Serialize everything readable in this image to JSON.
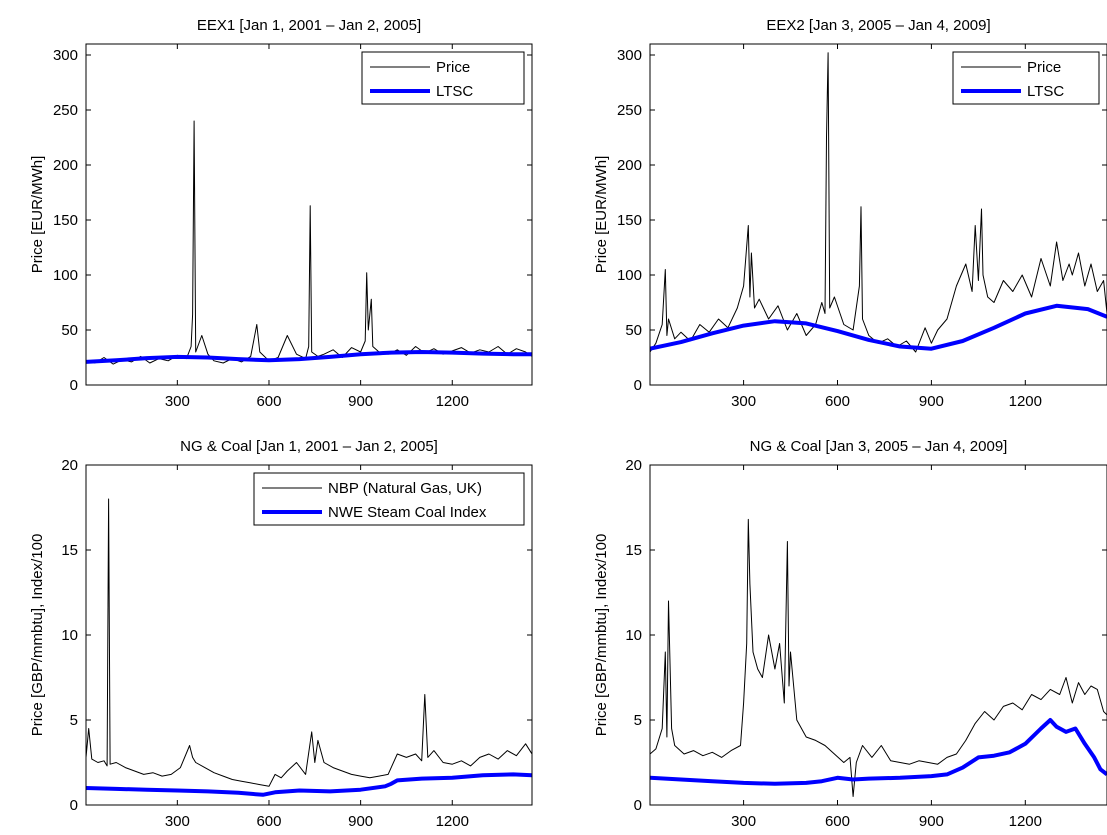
{
  "chart_data": [
    {
      "type": "line",
      "title": "EEX1 [Jan 1, 2001 – Jan 2, 2005]",
      "xlabel": "",
      "ylabel": "Price [EUR/MWh]",
      "xlim": [
        1,
        1461
      ],
      "ylim": [
        0,
        310
      ],
      "xticks": [
        300,
        600,
        900,
        1200
      ],
      "yticks": [
        0,
        50,
        100,
        150,
        200,
        250,
        300
      ],
      "grid": false,
      "legend_position": "top-right",
      "series": [
        {
          "name": "Price",
          "color": "#000000",
          "width": "thin",
          "x": [
            1,
            30,
            60,
            90,
            120,
            150,
            180,
            210,
            240,
            270,
            300,
            330,
            345,
            350,
            355,
            360,
            380,
            400,
            420,
            450,
            480,
            510,
            540,
            560,
            570,
            600,
            630,
            660,
            690,
            720,
            730,
            735,
            740,
            760,
            780,
            810,
            840,
            870,
            900,
            915,
            920,
            925,
            935,
            940,
            960,
            990,
            1020,
            1050,
            1080,
            1110,
            1140,
            1170,
            1200,
            1230,
            1260,
            1290,
            1320,
            1350,
            1380,
            1410,
            1440,
            1461
          ],
          "values": [
            22,
            20,
            25,
            19,
            23,
            21,
            26,
            20,
            24,
            22,
            27,
            24,
            35,
            64,
            240,
            30,
            45,
            28,
            22,
            20,
            24,
            21,
            26,
            55,
            30,
            22,
            25,
            45,
            28,
            24,
            35,
            163,
            30,
            26,
            28,
            32,
            25,
            34,
            30,
            40,
            102,
            50,
            78,
            35,
            30,
            28,
            32,
            27,
            35,
            29,
            33,
            28,
            31,
            34,
            29,
            32,
            30,
            35,
            28,
            33,
            30,
            26
          ]
        },
        {
          "name": "LTSC",
          "color": "#0000ff",
          "width": "thick",
          "x": [
            1,
            100,
            200,
            300,
            400,
            500,
            600,
            700,
            800,
            900,
            1000,
            1100,
            1200,
            1300,
            1400,
            1461
          ],
          "values": [
            21,
            22.5,
            24.5,
            25.5,
            25,
            23.5,
            22.5,
            23.5,
            25.5,
            28,
            29.5,
            30,
            29.5,
            28.5,
            28,
            28
          ]
        }
      ]
    },
    {
      "type": "line",
      "title": "EEX2 [Jan 3, 2005 – Jan 4, 2009]",
      "xlabel": "",
      "ylabel": "Price [EUR/MWh]",
      "xlim": [
        1,
        1461
      ],
      "ylim": [
        0,
        310
      ],
      "xticks": [
        300,
        600,
        900,
        1200
      ],
      "yticks": [
        0,
        50,
        100,
        150,
        200,
        250,
        300
      ],
      "grid": false,
      "legend_position": "top-right",
      "series": [
        {
          "name": "Price",
          "color": "#000000",
          "width": "thin",
          "x": [
            1,
            20,
            40,
            50,
            55,
            60,
            80,
            100,
            130,
            160,
            190,
            220,
            250,
            280,
            300,
            315,
            320,
            325,
            335,
            350,
            380,
            410,
            440,
            470,
            500,
            530,
            550,
            560,
            565,
            570,
            575,
            590,
            620,
            650,
            670,
            675,
            680,
            700,
            730,
            760,
            790,
            820,
            850,
            880,
            900,
            920,
            950,
            980,
            1010,
            1030,
            1040,
            1050,
            1060,
            1065,
            1080,
            1100,
            1130,
            1160,
            1190,
            1220,
            1250,
            1280,
            1300,
            1320,
            1340,
            1350,
            1370,
            1390,
            1410,
            1430,
            1450,
            1461
          ],
          "values": [
            30,
            38,
            55,
            105,
            45,
            60,
            42,
            48,
            40,
            55,
            48,
            60,
            52,
            70,
            90,
            145,
            80,
            120,
            70,
            78,
            60,
            72,
            50,
            65,
            45,
            55,
            75,
            65,
            225,
            302,
            70,
            80,
            55,
            50,
            90,
            162,
            60,
            45,
            38,
            42,
            35,
            40,
            30,
            52,
            38,
            50,
            60,
            90,
            110,
            85,
            145,
            95,
            160,
            100,
            80,
            75,
            95,
            85,
            100,
            80,
            115,
            90,
            130,
            95,
            110,
            100,
            120,
            90,
            110,
            85,
            95,
            65
          ]
        },
        {
          "name": "LTSC",
          "color": "#0000ff",
          "width": "thick",
          "x": [
            1,
            100,
            200,
            300,
            400,
            500,
            600,
            700,
            800,
            900,
            1000,
            1100,
            1200,
            1300,
            1400,
            1461
          ],
          "values": [
            33,
            39,
            47,
            54,
            58,
            56,
            49,
            41,
            35,
            33,
            40,
            52,
            65,
            72,
            69,
            62
          ]
        }
      ]
    },
    {
      "type": "line",
      "title": "NG & Coal [Jan 1, 2001 – Jan 2, 2005]",
      "xlabel": "",
      "ylabel": "Price [GBP/mmbtu], Index/100",
      "xlim": [
        1,
        1461
      ],
      "ylim": [
        0,
        20
      ],
      "xticks": [
        300,
        600,
        900,
        1200
      ],
      "yticks": [
        0,
        5,
        10,
        15,
        20
      ],
      "grid": false,
      "legend_position": "top-right",
      "series": [
        {
          "name": "NBP (Natural Gas, UK)",
          "color": "#000000",
          "width": "thin",
          "x": [
            1,
            10,
            20,
            40,
            60,
            70,
            75,
            80,
            100,
            130,
            160,
            190,
            220,
            250,
            280,
            310,
            340,
            350,
            360,
            390,
            420,
            450,
            480,
            510,
            540,
            570,
            600,
            620,
            640,
            660,
            690,
            720,
            740,
            750,
            760,
            780,
            810,
            840,
            870,
            900,
            930,
            960,
            990,
            1020,
            1050,
            1080,
            1100,
            1110,
            1120,
            1140,
            1170,
            1200,
            1230,
            1260,
            1290,
            1320,
            1350,
            1380,
            1410,
            1440,
            1461
          ],
          "values": [
            2.8,
            4.5,
            2.7,
            2.5,
            2.6,
            2.3,
            18.0,
            2.4,
            2.5,
            2.2,
            2.0,
            1.8,
            1.9,
            1.7,
            1.8,
            2.2,
            3.5,
            2.8,
            2.5,
            2.2,
            1.9,
            1.7,
            1.5,
            1.4,
            1.3,
            1.2,
            1.1,
            1.8,
            1.6,
            2.0,
            2.5,
            1.8,
            4.3,
            2.5,
            3.8,
            2.5,
            2.2,
            2.0,
            1.8,
            1.7,
            1.6,
            1.7,
            1.8,
            3.0,
            2.8,
            3.0,
            2.6,
            6.5,
            2.8,
            3.2,
            2.5,
            2.4,
            2.6,
            2.3,
            2.8,
            3.0,
            2.7,
            3.2,
            2.9,
            3.6,
            3.0
          ]
        },
        {
          "name": "NWE Steam Coal Index",
          "color": "#0000ff",
          "width": "thick",
          "x": [
            1,
            100,
            200,
            300,
            400,
            500,
            580,
            620,
            700,
            800,
            900,
            980,
            1000,
            1020,
            1100,
            1200,
            1300,
            1400,
            1461
          ],
          "values": [
            1.0,
            0.95,
            0.9,
            0.85,
            0.8,
            0.72,
            0.6,
            0.75,
            0.85,
            0.8,
            0.9,
            1.1,
            1.25,
            1.45,
            1.55,
            1.6,
            1.75,
            1.8,
            1.75
          ]
        }
      ]
    },
    {
      "type": "line",
      "title": "NG & Coal [Jan 3, 2005 – Jan 4, 2009]",
      "xlabel": "",
      "ylabel": "Price [GBP/mmbtu], Index/100",
      "xlim": [
        1,
        1461
      ],
      "ylim": [
        0,
        20
      ],
      "xticks": [
        300,
        600,
        900,
        1200
      ],
      "yticks": [
        0,
        5,
        10,
        15,
        20
      ],
      "grid": false,
      "legend_position": "none",
      "series": [
        {
          "name": "",
          "color": "#000000",
          "width": "thin",
          "x": [
            1,
            20,
            40,
            50,
            55,
            60,
            70,
            80,
            110,
            140,
            170,
            200,
            230,
            260,
            290,
            300,
            310,
            315,
            320,
            330,
            345,
            360,
            380,
            400,
            415,
            430,
            440,
            445,
            450,
            470,
            500,
            530,
            560,
            590,
            620,
            640,
            650,
            660,
            680,
            710,
            740,
            770,
            800,
            830,
            860,
            890,
            920,
            950,
            980,
            1010,
            1040,
            1070,
            1100,
            1130,
            1160,
            1190,
            1220,
            1250,
            1280,
            1310,
            1330,
            1350,
            1370,
            1390,
            1410,
            1430,
            1450,
            1461
          ],
          "values": [
            3.0,
            3.3,
            4.5,
            9.0,
            4.0,
            12.0,
            4.5,
            3.5,
            3.0,
            3.2,
            2.9,
            3.1,
            2.8,
            3.2,
            3.5,
            6.0,
            9.5,
            16.8,
            13.0,
            9.0,
            8.0,
            7.5,
            10.0,
            8.0,
            9.5,
            6.0,
            15.5,
            7.0,
            9.0,
            5.0,
            4.0,
            3.8,
            3.5,
            3.0,
            2.5,
            2.8,
            0.5,
            2.5,
            3.5,
            2.8,
            3.5,
            2.6,
            2.5,
            2.4,
            2.6,
            2.5,
            2.4,
            2.8,
            3.0,
            3.8,
            4.8,
            5.5,
            5.0,
            5.8,
            6.0,
            5.6,
            6.5,
            6.2,
            6.8,
            6.5,
            7.5,
            6.0,
            7.2,
            6.5,
            7.0,
            6.8,
            5.5,
            5.3
          ]
        },
        {
          "name": "",
          "color": "#0000ff",
          "width": "thick",
          "x": [
            1,
            100,
            200,
            300,
            400,
            500,
            550,
            600,
            650,
            700,
            800,
            900,
            950,
            1000,
            1050,
            1100,
            1150,
            1200,
            1250,
            1280,
            1300,
            1330,
            1360,
            1390,
            1420,
            1440,
            1461
          ],
          "values": [
            1.6,
            1.5,
            1.4,
            1.3,
            1.25,
            1.3,
            1.4,
            1.6,
            1.5,
            1.55,
            1.6,
            1.7,
            1.8,
            2.2,
            2.8,
            2.9,
            3.1,
            3.6,
            4.5,
            5.0,
            4.6,
            4.3,
            4.5,
            3.6,
            2.8,
            2.1,
            1.8
          ]
        }
      ]
    }
  ]
}
